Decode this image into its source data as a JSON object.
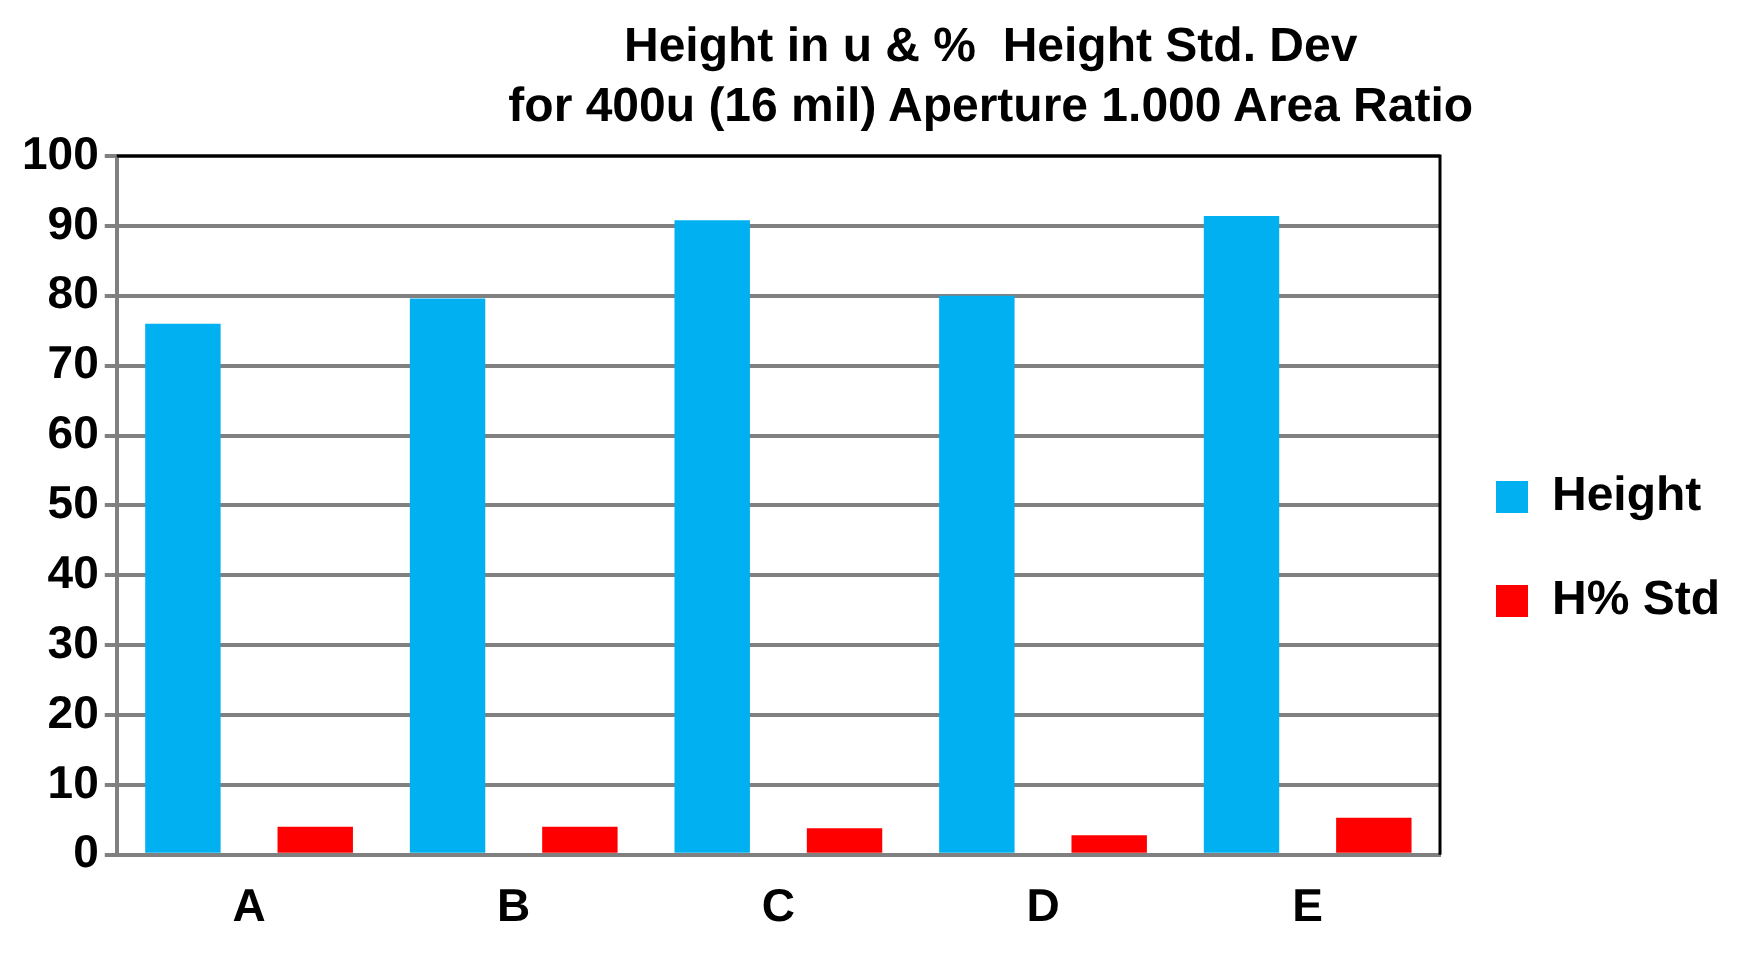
{
  "chart_data": {
    "type": "bar",
    "title": "Height in u & %  Height Std. Dev\nfor 400u (16 mil) Aperture 1.000 Area Ratio",
    "categories": [
      "A",
      "B",
      "C",
      "D",
      "E"
    ],
    "series": [
      {
        "name": "Height",
        "color": "#00b0f0",
        "values": [
          76,
          79.6,
          90.8,
          80,
          91.4
        ]
      },
      {
        "name": "H% Std",
        "color": "#ff0000",
        "values": [
          4,
          4,
          3.8,
          2.8,
          5.3
        ]
      }
    ],
    "ylim": [
      0,
      100
    ],
    "yticks": [
      0,
      10,
      20,
      30,
      40,
      50,
      60,
      70,
      80,
      90,
      100
    ],
    "grid": "y",
    "legend": "right"
  }
}
